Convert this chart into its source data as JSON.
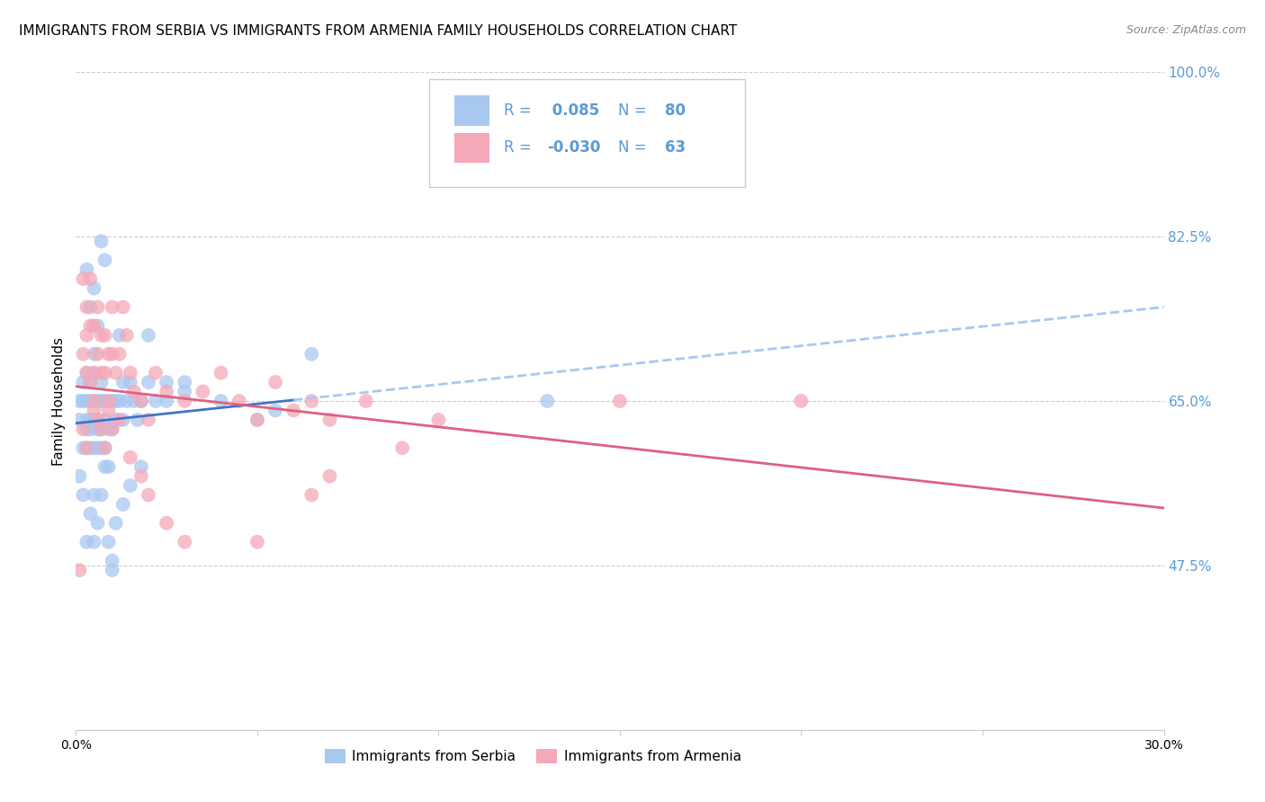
{
  "title": "IMMIGRANTS FROM SERBIA VS IMMIGRANTS FROM ARMENIA FAMILY HOUSEHOLDS CORRELATION CHART",
  "source": "Source: ZipAtlas.com",
  "ylabel": "Family Households",
  "xlim": [
    0.0,
    0.3
  ],
  "ylim": [
    0.3,
    1.0
  ],
  "yticks": [
    0.3,
    0.475,
    0.65,
    0.825,
    1.0
  ],
  "ytick_labels": [
    "",
    "47.5%",
    "65.0%",
    "82.5%",
    "100.0%"
  ],
  "xticks": [
    0.0,
    0.05,
    0.1,
    0.15,
    0.2,
    0.25,
    0.3
  ],
  "xtick_labels": [
    "0.0%",
    "",
    "",
    "",
    "",
    "",
    "30.0%"
  ],
  "serbia_R": 0.085,
  "serbia_N": 80,
  "armenia_R": -0.03,
  "armenia_N": 63,
  "serbia_color": "#A8C8F0",
  "armenia_color": "#F4A8B8",
  "serbia_line_color": "#4472C4",
  "serbia_dash_color": "#A8C8F0",
  "armenia_line_color": "#E06080",
  "legend_label_serbia": "Immigrants from Serbia",
  "legend_label_armenia": "Immigrants from Armenia",
  "serbia_x": [
    0.001,
    0.001,
    0.002,
    0.002,
    0.002,
    0.003,
    0.003,
    0.003,
    0.003,
    0.003,
    0.004,
    0.004,
    0.004,
    0.004,
    0.004,
    0.005,
    0.005,
    0.005,
    0.005,
    0.005,
    0.005,
    0.006,
    0.006,
    0.006,
    0.006,
    0.007,
    0.007,
    0.007,
    0.007,
    0.008,
    0.008,
    0.008,
    0.009,
    0.009,
    0.01,
    0.01,
    0.011,
    0.011,
    0.012,
    0.013,
    0.013,
    0.014,
    0.015,
    0.016,
    0.017,
    0.018,
    0.02,
    0.022,
    0.025,
    0.03,
    0.003,
    0.004,
    0.005,
    0.006,
    0.007,
    0.008,
    0.009,
    0.01,
    0.011,
    0.012,
    0.013,
    0.015,
    0.018,
    0.02,
    0.025,
    0.03,
    0.04,
    0.05,
    0.055,
    0.065,
    0.001,
    0.002,
    0.003,
    0.004,
    0.005,
    0.006,
    0.007,
    0.008,
    0.01,
    0.13
  ],
  "serbia_y": [
    0.65,
    0.63,
    0.67,
    0.65,
    0.6,
    0.63,
    0.65,
    0.68,
    0.6,
    0.62,
    0.62,
    0.65,
    0.6,
    0.63,
    0.67,
    0.6,
    0.63,
    0.65,
    0.68,
    0.7,
    0.55,
    0.62,
    0.65,
    0.6,
    0.63,
    0.62,
    0.65,
    0.6,
    0.67,
    0.63,
    0.65,
    0.6,
    0.58,
    0.62,
    0.62,
    0.65,
    0.63,
    0.65,
    0.65,
    0.63,
    0.67,
    0.65,
    0.67,
    0.65,
    0.63,
    0.65,
    0.67,
    0.65,
    0.67,
    0.67,
    0.79,
    0.75,
    0.77,
    0.73,
    0.82,
    0.8,
    0.5,
    0.48,
    0.52,
    0.72,
    0.54,
    0.56,
    0.58,
    0.72,
    0.65,
    0.66,
    0.65,
    0.63,
    0.64,
    0.7,
    0.57,
    0.55,
    0.5,
    0.53,
    0.5,
    0.52,
    0.55,
    0.58,
    0.47,
    0.65
  ],
  "armenia_x": [
    0.001,
    0.002,
    0.002,
    0.003,
    0.003,
    0.003,
    0.004,
    0.004,
    0.005,
    0.005,
    0.005,
    0.006,
    0.006,
    0.007,
    0.007,
    0.008,
    0.008,
    0.009,
    0.009,
    0.01,
    0.01,
    0.011,
    0.012,
    0.013,
    0.014,
    0.015,
    0.016,
    0.018,
    0.02,
    0.022,
    0.025,
    0.03,
    0.035,
    0.04,
    0.045,
    0.05,
    0.055,
    0.06,
    0.065,
    0.07,
    0.08,
    0.09,
    0.1,
    0.15,
    0.2,
    0.002,
    0.003,
    0.004,
    0.005,
    0.006,
    0.007,
    0.008,
    0.009,
    0.01,
    0.012,
    0.015,
    0.018,
    0.02,
    0.025,
    0.03,
    0.05,
    0.065,
    0.07
  ],
  "armenia_y": [
    0.47,
    0.78,
    0.7,
    0.75,
    0.68,
    0.72,
    0.78,
    0.73,
    0.73,
    0.68,
    0.65,
    0.7,
    0.75,
    0.72,
    0.68,
    0.72,
    0.68,
    0.7,
    0.65,
    0.7,
    0.75,
    0.68,
    0.7,
    0.75,
    0.72,
    0.68,
    0.66,
    0.65,
    0.63,
    0.68,
    0.66,
    0.65,
    0.66,
    0.68,
    0.65,
    0.63,
    0.67,
    0.64,
    0.65,
    0.63,
    0.65,
    0.6,
    0.63,
    0.65,
    0.65,
    0.62,
    0.6,
    0.67,
    0.64,
    0.63,
    0.62,
    0.6,
    0.64,
    0.62,
    0.63,
    0.59,
    0.57,
    0.55,
    0.52,
    0.5,
    0.5,
    0.55,
    0.57
  ],
  "background_color": "#ffffff",
  "grid_color": "#cccccc",
  "title_fontsize": 11,
  "axis_label_fontsize": 11,
  "tick_fontsize": 10,
  "right_tick_color": "#5B9BD5",
  "legend_text_color": "#5B9BD5",
  "serbia_trend_x_start": 0.0,
  "serbia_trend_x_solid_end": 0.06,
  "serbia_trend_x_dash_end": 0.3,
  "armenia_trend_x_start": 0.0,
  "armenia_trend_x_end": 0.3
}
